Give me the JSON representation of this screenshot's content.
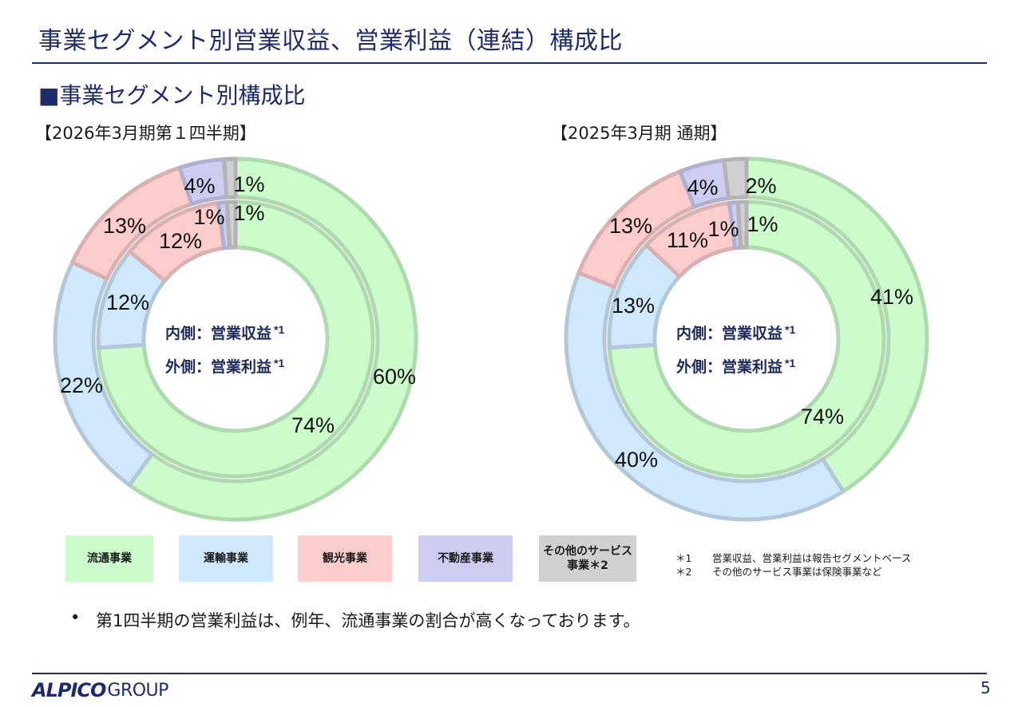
{
  "header": {
    "title": "事業セグメント別営業収益、営業利益（連結）構成比"
  },
  "section_title": "■事業セグメント別構成比",
  "colors": {
    "流通事業": "#ccfccc",
    "運輸事業": "#cfe8fb",
    "観光事業": "#fdcdce",
    "不動産事業": "#cdcdf2",
    "その他のサービス事業": "#d0d0d0"
  },
  "chart_data": [
    {
      "type": "donut",
      "period": "【2026年3月期第１四半期】",
      "center_line1": "内側：営業収益",
      "center_line2": "外側：営業利益",
      "center_mark": "*1",
      "categories": [
        "流通事業",
        "運輸事業",
        "観光事業",
        "不動産事業",
        "その他のサービス事業"
      ],
      "series": [
        {
          "ring": "inner",
          "values": [
            74,
            12,
            12,
            1,
            1
          ],
          "labels": [
            "74%",
            "12%",
            "12%",
            "1%",
            "1%"
          ]
        },
        {
          "ring": "outer",
          "values": [
            60,
            22,
            13,
            4,
            1
          ],
          "labels": [
            "60%",
            "22%",
            "13%",
            "4%",
            "1%"
          ]
        }
      ]
    },
    {
      "type": "donut",
      "period": "【2025年3月期 通期】",
      "center_line1": "内側：営業収益",
      "center_line2": "外側：営業利益",
      "center_mark": "*1",
      "categories": [
        "流通事業",
        "運輸事業",
        "観光事業",
        "不動産事業",
        "その他のサービス事業"
      ],
      "series": [
        {
          "ring": "inner",
          "values": [
            74,
            13,
            11,
            1,
            1
          ],
          "labels": [
            "74%",
            "13%",
            "11%",
            "1%",
            "1%"
          ]
        },
        {
          "ring": "outer",
          "values": [
            41,
            40,
            13,
            4,
            2
          ],
          "labels": [
            "41%",
            "40%",
            "13%",
            "4%",
            "2%"
          ]
        }
      ]
    }
  ],
  "legend": [
    {
      "label": "流通事業",
      "key": "流通事業"
    },
    {
      "label": "運輸事業",
      "key": "運輸事業"
    },
    {
      "label": "観光事業",
      "key": "観光事業"
    },
    {
      "label": "不動産事業",
      "key": "不動産事業"
    },
    {
      "label": "その他のサービス事業＊2",
      "key": "その他のサービス事業"
    }
  ],
  "notes": [
    {
      "mark": "＊1",
      "text": "営業収益、営業利益は報告セグメントベース"
    },
    {
      "mark": "＊2",
      "text": "その他のサービス事業は保険事業など"
    }
  ],
  "bullet": {
    "symbol": "•",
    "text": "第1四半期の営業利益は、例年、流通事業の割合が高くなっております。"
  },
  "footer": {
    "logo_main": "ALPICO",
    "logo_sub": "GROUP",
    "page_number": "5"
  }
}
